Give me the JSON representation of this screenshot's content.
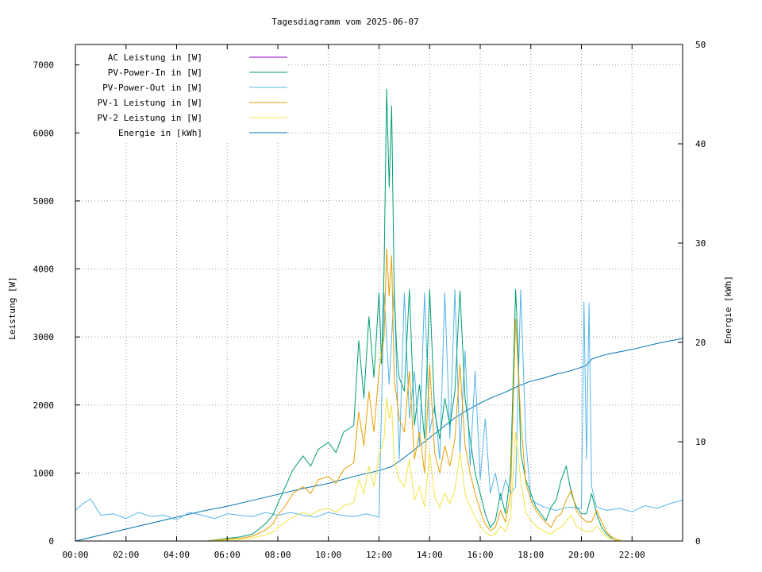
{
  "chart_data": {
    "type": "line",
    "title": "Tagesdiagramm vom 2025-06-07",
    "xlabel": "",
    "ylabel": "Leistung [W]",
    "y2label": "Energie [kWh]",
    "x_ticks": [
      "00:00",
      "02:00",
      "04:00",
      "06:00",
      "08:00",
      "10:00",
      "12:00",
      "14:00",
      "16:00",
      "18:00",
      "20:00",
      "22:00"
    ],
    "xlim_hours": [
      0,
      24
    ],
    "ylim": [
      0,
      7300
    ],
    "y_ticks": [
      0,
      1000,
      2000,
      3000,
      4000,
      5000,
      6000,
      7000
    ],
    "y2lim": [
      0,
      50
    ],
    "y2_ticks": [
      0,
      10,
      20,
      30,
      40,
      50
    ],
    "grid": true,
    "legend_position": "top-left",
    "colors": {
      "ac": "#9400d3",
      "pv_in": "#009e73",
      "pv_out": "#56b4e9",
      "pv1": "#e69f00",
      "pv2": "#f0e442",
      "energy": "#0072b2"
    },
    "series": [
      {
        "name": "AC Leistung in [W]",
        "key": "ac",
        "axis": "y1",
        "x": [],
        "values": []
      },
      {
        "name": "PV-Power-In in [W]",
        "key": "pv_in",
        "axis": "y1",
        "x": [
          0,
          5.2,
          5.6,
          6,
          6.5,
          7,
          7.5,
          7.8,
          8,
          8.3,
          8.6,
          9,
          9.3,
          9.6,
          10,
          10.3,
          10.6,
          11,
          11.2,
          11.4,
          11.6,
          11.8,
          12,
          12.1,
          12.2,
          12.3,
          12.4,
          12.5,
          12.6,
          12.7,
          12.8,
          13,
          13.2,
          13.4,
          13.6,
          13.8,
          14,
          14.2,
          14.4,
          14.6,
          14.8,
          15,
          15.2,
          15.4,
          15.6,
          15.8,
          16,
          16.2,
          16.4,
          16.6,
          16.8,
          17,
          17.2,
          17.4,
          17.5,
          17.6,
          17.8,
          18,
          18.2,
          18.4,
          18.6,
          18.8,
          19,
          19.2,
          19.4,
          19.6,
          19.8,
          20,
          20.2,
          20.4,
          20.6,
          20.8,
          21,
          21.2,
          21.4,
          21.6,
          24
        ],
        "values": [
          0,
          0,
          20,
          40,
          60,
          100,
          250,
          380,
          550,
          800,
          1050,
          1250,
          1100,
          1350,
          1450,
          1300,
          1600,
          1700,
          2950,
          2100,
          3300,
          2400,
          3650,
          2600,
          4000,
          6650,
          5200,
          6400,
          3700,
          2800,
          2400,
          2200,
          3700,
          1700,
          2300,
          1500,
          3700,
          1900,
          1500,
          2100,
          1700,
          2200,
          3680,
          2100,
          1500,
          1000,
          700,
          400,
          200,
          300,
          700,
          400,
          1000,
          3700,
          2800,
          1300,
          900,
          700,
          500,
          400,
          300,
          500,
          600,
          900,
          1100,
          700,
          500,
          400,
          400,
          700,
          400,
          200,
          100,
          40,
          0,
          0,
          0
        ]
      },
      {
        "name": "PV-Power-Out in [W]",
        "key": "pv_out",
        "axis": "y1",
        "x": [
          0,
          0.3,
          0.6,
          1,
          1.5,
          2,
          2.5,
          3,
          3.5,
          4,
          4.5,
          5,
          5.5,
          6,
          6.5,
          7,
          7.5,
          8,
          8.5,
          9,
          9.5,
          10,
          10.5,
          11,
          11.5,
          12,
          12.2,
          12.4,
          12.6,
          12.8,
          13,
          13.2,
          13.4,
          13.6,
          13.8,
          14,
          14.2,
          14.4,
          14.6,
          14.8,
          15,
          15.2,
          15.4,
          15.6,
          15.8,
          16,
          16.2,
          16.4,
          16.6,
          16.8,
          17,
          17.2,
          17.4,
          17.6,
          17.8,
          18,
          18.5,
          19,
          19.5,
          20,
          20.1,
          20.2,
          20.3,
          20.4,
          20.6,
          21,
          21.5,
          22,
          22.5,
          23,
          23.5,
          24
        ],
        "values": [
          450,
          550,
          620,
          380,
          400,
          330,
          420,
          360,
          380,
          310,
          420,
          380,
          330,
          400,
          380,
          360,
          420,
          380,
          420,
          380,
          350,
          420,
          380,
          360,
          400,
          350,
          3650,
          2300,
          3700,
          1200,
          3650,
          1800,
          2500,
          1400,
          3650,
          1600,
          2000,
          1200,
          3650,
          1500,
          3700,
          1300,
          2800,
          1100,
          2500,
          900,
          1800,
          700,
          1000,
          600,
          900,
          700,
          800,
          3700,
          1500,
          600,
          500,
          450,
          500,
          480,
          3520,
          1200,
          3500,
          800,
          500,
          450,
          480,
          430,
          520,
          480,
          550,
          600
        ]
      },
      {
        "name": "PV-1 Leistung in [W]",
        "key": "pv1",
        "axis": "y1",
        "x": [
          0,
          5.2,
          5.6,
          6,
          6.5,
          7,
          7.5,
          7.8,
          8,
          8.3,
          8.6,
          9,
          9.3,
          9.6,
          10,
          10.3,
          10.6,
          11,
          11.2,
          11.4,
          11.6,
          11.8,
          12,
          12.2,
          12.3,
          12.4,
          12.5,
          12.6,
          12.8,
          13,
          13.2,
          13.4,
          13.6,
          13.8,
          14,
          14.2,
          14.4,
          14.6,
          14.8,
          15,
          15.2,
          15.4,
          15.6,
          15.8,
          16,
          16.2,
          16.4,
          16.6,
          16.8,
          17,
          17.2,
          17.4,
          17.6,
          17.8,
          18,
          18.2,
          18.4,
          18.6,
          18.8,
          19,
          19.2,
          19.4,
          19.6,
          19.8,
          20,
          20.2,
          20.4,
          20.6,
          20.8,
          21,
          21.2,
          21.4,
          21.6,
          24
        ],
        "values": [
          0,
          0,
          15,
          30,
          40,
          70,
          160,
          250,
          380,
          520,
          700,
          800,
          700,
          900,
          950,
          850,
          1050,
          1150,
          1900,
          1400,
          2200,
          1600,
          2500,
          3000,
          4300,
          3600,
          4200,
          2400,
          1800,
          1600,
          2500,
          1200,
          1600,
          1000,
          2600,
          1300,
          1000,
          1400,
          1100,
          1500,
          2600,
          1400,
          1000,
          700,
          450,
          250,
          150,
          200,
          450,
          280,
          700,
          3270,
          1800,
          850,
          600,
          450,
          350,
          270,
          200,
          350,
          400,
          600,
          750,
          450,
          350,
          280,
          280,
          450,
          280,
          130,
          60,
          25,
          0,
          0
        ]
      },
      {
        "name": "PV-2 Leistung in [W]",
        "key": "pv2",
        "axis": "y1",
        "x": [
          0,
          5.2,
          5.6,
          6,
          6.5,
          7,
          7.5,
          7.8,
          8,
          8.3,
          8.6,
          9,
          9.3,
          9.6,
          10,
          10.3,
          10.6,
          11,
          11.2,
          11.4,
          11.6,
          11.8,
          12,
          12.2,
          12.3,
          12.4,
          12.5,
          12.6,
          12.8,
          13,
          13.2,
          13.4,
          13.6,
          13.8,
          14,
          14.2,
          14.4,
          14.6,
          14.8,
          15,
          15.2,
          15.4,
          15.6,
          15.8,
          16,
          16.2,
          16.4,
          16.6,
          16.8,
          17,
          17.2,
          17.4,
          17.6,
          17.8,
          18,
          18.2,
          18.4,
          18.6,
          18.8,
          19,
          19.2,
          19.4,
          19.6,
          19.8,
          20,
          20.2,
          20.4,
          20.6,
          20.8,
          21,
          21.2,
          21.4,
          21.6,
          24
        ],
        "values": [
          0,
          0,
          8,
          15,
          25,
          40,
          90,
          130,
          200,
          280,
          350,
          420,
          380,
          450,
          480,
          420,
          520,
          560,
          900,
          700,
          1100,
          800,
          1250,
          1500,
          2100,
          1800,
          2000,
          1200,
          900,
          800,
          1200,
          600,
          800,
          500,
          1300,
          650,
          500,
          700,
          550,
          750,
          1300,
          700,
          500,
          350,
          220,
          130,
          80,
          100,
          220,
          140,
          350,
          1600,
          900,
          420,
          300,
          220,
          170,
          130,
          100,
          170,
          200,
          300,
          380,
          220,
          170,
          140,
          140,
          220,
          140,
          60,
          30,
          10,
          0,
          0
        ]
      },
      {
        "name": "Energie in [kWh]",
        "key": "energy",
        "axis": "y2",
        "x": [
          0,
          1,
          2,
          3,
          4,
          5,
          6,
          7,
          8,
          9,
          10,
          11,
          12,
          12.5,
          13,
          13.5,
          14,
          14.5,
          15,
          15.5,
          16,
          16.5,
          17,
          17.5,
          18,
          18.5,
          19,
          19.5,
          20,
          20.2,
          20.4,
          20.6,
          21,
          22,
          23,
          24
        ],
        "values": [
          0,
          0.6,
          1.2,
          1.8,
          2.4,
          3.0,
          3.5,
          4.1,
          4.7,
          5.3,
          5.8,
          6.5,
          7.1,
          7.5,
          8.4,
          9.4,
          10.4,
          11.4,
          12.4,
          13.2,
          13.9,
          14.5,
          15.0,
          15.6,
          16.1,
          16.4,
          16.8,
          17.1,
          17.5,
          17.7,
          18.3,
          18.5,
          18.8,
          19.3,
          19.9,
          20.4
        ]
      }
    ]
  }
}
